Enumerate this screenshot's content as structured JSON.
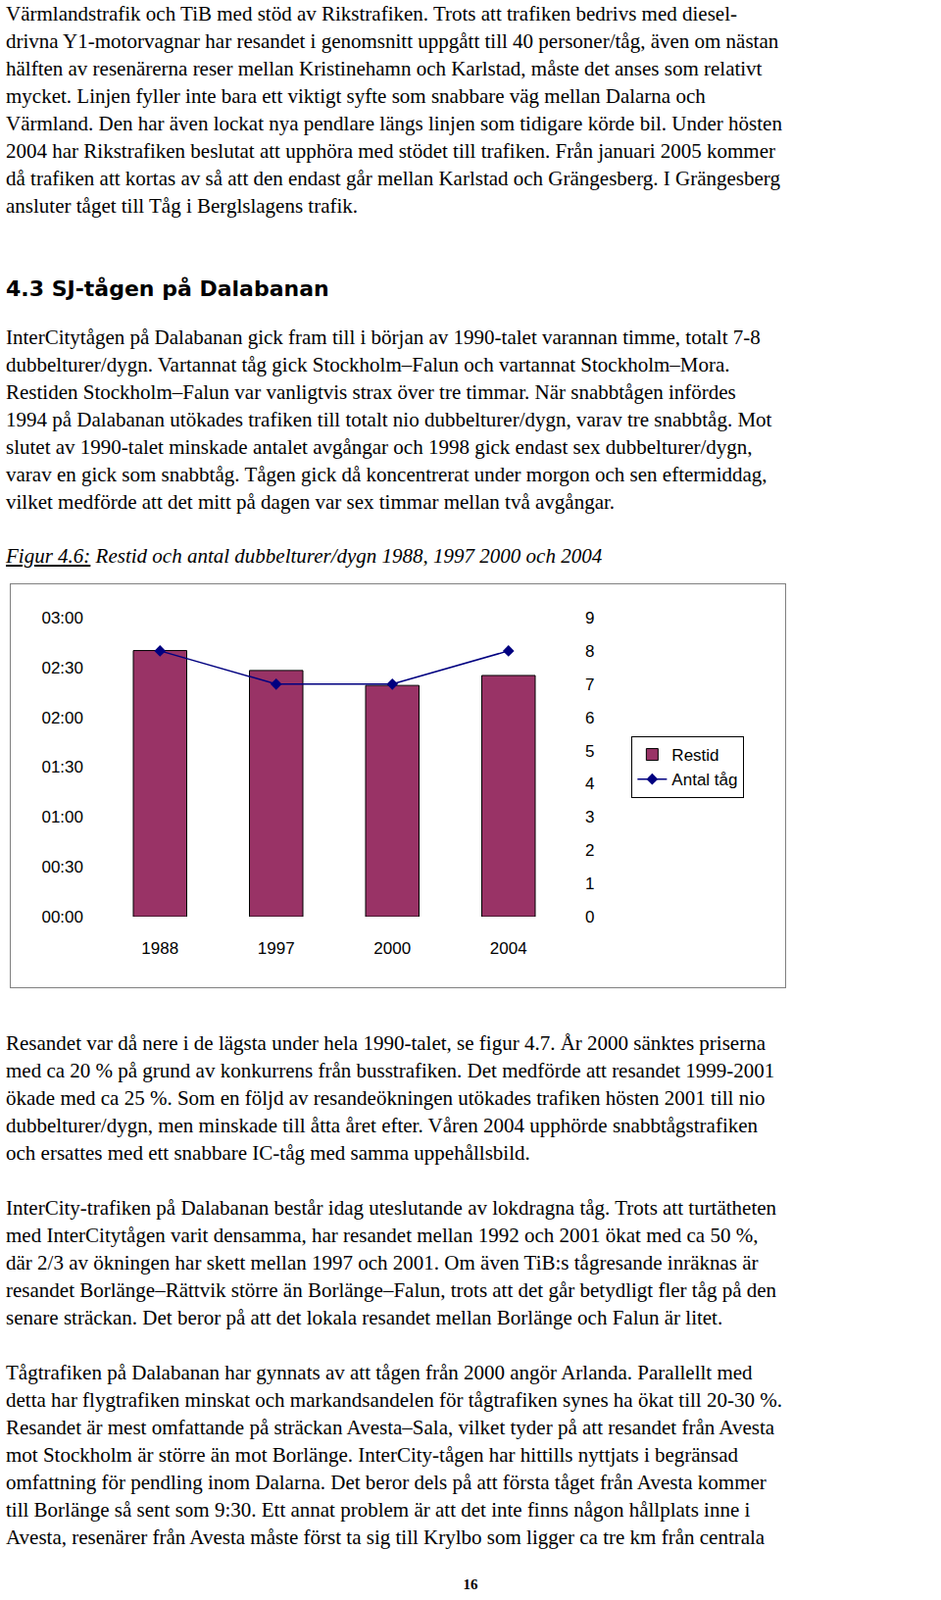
{
  "top_paragraph": {
    "lines": [
      "Värmlandstrafik och TiB med stöd av Rikstrafiken. Trots att trafiken bedrivs med diesel-",
      "drivna Y1-motorvagnar har resandet i genomsnitt uppgått till 40 personer/tåg, även om nästan",
      "hälften av resenärerna reser mellan Kristinehamn och Karlstad, måste det anses som relativt",
      "mycket. Linjen fyller inte bara ett viktigt syfte som snabbare väg mellan Dalarna och",
      "Värmland. Den har även lockat nya pendlare längs linjen som tidigare körde bil. Under hösten",
      "2004 har Rikstrafiken beslutat att upphöra med stödet till trafiken. Från januari 2005 kommer",
      "då trafiken att kortas av så att den endast går mellan Karlstad och Grängesberg. I Grängesberg",
      "ansluter tåget till Tåg i Berglslagens trafik."
    ]
  },
  "heading": "4.3 SJ-tågen på Dalabanan",
  "section_paragraph": {
    "lines": [
      "InterCitytågen på Dalabanan gick fram till i början av 1990-talet varannan timme, totalt 7-8",
      "dubbelturer/dygn. Vartannat tåg gick Stockholm–Falun och vartannat Stockholm–Mora.",
      "Restiden Stockholm–Falun var vanligtvis strax över tre timmar.  När snabbtågen infördes",
      "1994 på Dalabanan utökades trafiken till totalt nio dubbelturer/dygn, varav tre snabbtåg. Mot",
      "slutet av 1990-talet minskade antalet avgångar och 1998 gick endast sex dubbelturer/dygn,",
      "varav en gick som snabbtåg. Tågen gick då koncentrerat under morgon och sen eftermiddag,",
      "vilket medförde att det mitt på dagen var sex timmar mellan två avgångar."
    ]
  },
  "figure": {
    "label": "Figur 4.6:",
    "caption": "Restid och antal dubbelturer/dygn 1988, 1997 2000 och 2004"
  },
  "chart_data": {
    "type": "bar",
    "categories": [
      "1988",
      "1997",
      "2000",
      "2004"
    ],
    "series": [
      {
        "name": "Restid",
        "type": "bar",
        "color": "#993366",
        "values": [
          2.67,
          2.47,
          2.32,
          2.42
        ]
      },
      {
        "name": "Antal tåg",
        "type": "line",
        "color": "#000080",
        "marker": "diamond",
        "axis": "y2",
        "values": [
          8,
          7,
          7,
          8
        ]
      }
    ],
    "ylim": [
      0,
      3
    ],
    "yticks": [
      {
        "value": 0,
        "label": "00:00"
      },
      {
        "value": 0.5,
        "label": "00:30"
      },
      {
        "value": 1,
        "label": "01:00"
      },
      {
        "value": 1.5,
        "label": "01:30"
      },
      {
        "value": 2,
        "label": "02:00"
      },
      {
        "value": 2.5,
        "label": "02:30"
      },
      {
        "value": 3,
        "label": "03:00"
      }
    ],
    "y2lim": [
      0,
      9
    ],
    "y2ticks": [
      0,
      1,
      2,
      3,
      4,
      5,
      6,
      7,
      8,
      9
    ],
    "legend": "right",
    "grid": false
  },
  "bottom_paragraphs": [
    {
      "lines": [
        "Resandet var då nere i de lägsta under hela 1990-talet, se figur 4.7. År 2000 sänktes priserna",
        "med ca 20 % på grund av konkurrens från busstrafiken. Det medförde att resandet 1999-2001",
        "ökade med ca 25 %. Som en följd av resandeökningen utökades trafiken hösten 2001 till nio",
        "dubbelturer/dygn, men minskade till åtta året efter. Våren 2004 upphörde snabbtågstrafiken",
        "och ersattes med ett snabbare IC-tåg med samma uppehållsbild."
      ]
    },
    {
      "lines": [
        "InterCity-trafiken på Dalabanan består idag uteslutande av lokdragna tåg. Trots att turtätheten",
        "med InterCitytågen varit densamma, har resandet mellan 1992 och 2001 ökat med ca 50 %,",
        "där 2/3 av ökningen har skett mellan 1997 och 2001. Om även TiB:s tågresande inräknas är",
        "resandet Borlänge–Rättvik större än Borlänge–Falun, trots att det går betydligt fler tåg på den",
        "senare sträckan. Det beror på att det lokala resandet mellan Borlänge och Falun är litet."
      ]
    },
    {
      "lines": [
        "Tågtrafiken på Dalabanan har gynnats av att tågen från 2000 angör Arlanda. Parallellt med",
        "detta har flygtrafiken minskat och markandsandelen för tågtrafiken synes ha ökat till 20-30 %.",
        "Resandet är mest omfattande på sträckan Avesta–Sala, vilket tyder på att resandet från Avesta",
        "mot Stockholm är större än mot Borlänge. InterCity-tågen har hittills nyttjats i begränsad",
        "omfattning för pendling inom Dalarna. Det beror dels på att första tåget från Avesta kommer",
        "till Borlänge så sent som 9:30. Ett annat problem är att det inte finns någon hållplats inne i",
        "Avesta, resenärer från Avesta måste först ta sig till Krylbo som ligger ca tre km från centrala"
      ]
    }
  ],
  "page_number": "16"
}
